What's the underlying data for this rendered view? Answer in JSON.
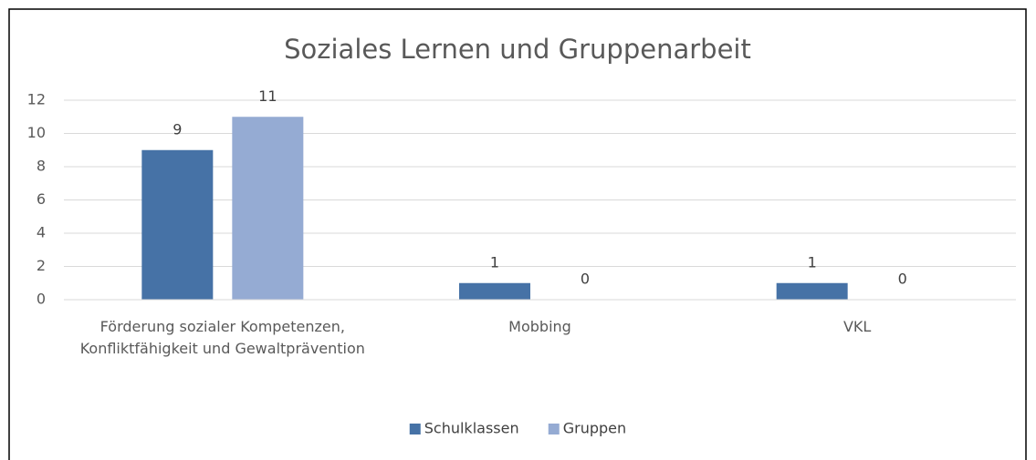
{
  "chart_data": {
    "type": "bar",
    "title": "Soziales Lernen und Gruppenarbeit",
    "categories": [
      "Förderung sozialer Kompetenzen, Konfliktfähigkeit und Gewaltprävention",
      "Mobbing",
      "VKL"
    ],
    "series": [
      {
        "name": "Schulklassen",
        "color": "#4672a6",
        "values": [
          9,
          1,
          1
        ]
      },
      {
        "name": "Gruppen",
        "color": "#95abd3",
        "values": [
          11,
          0,
          0
        ]
      }
    ],
    "ylim": [
      0,
      12
    ],
    "yticks": [
      0,
      2,
      4,
      6,
      8,
      10,
      12
    ],
    "grid": true,
    "legend": "bottom"
  }
}
